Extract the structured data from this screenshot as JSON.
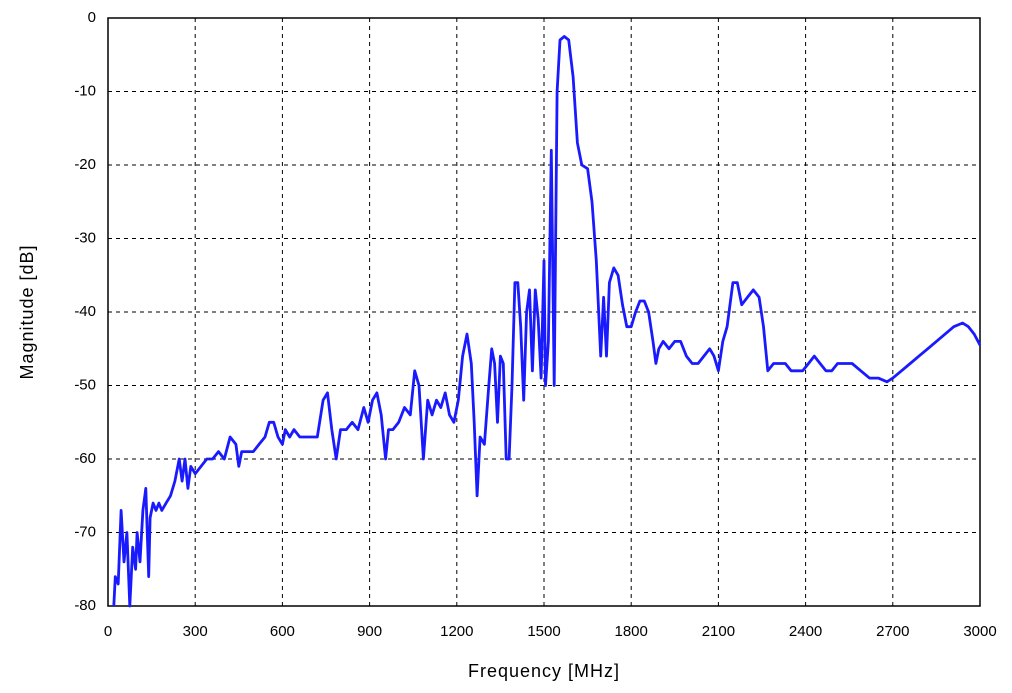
{
  "chart_data": {
    "type": "line",
    "xlabel": "Frequency [MHz]",
    "ylabel": "Magnitude [dB]",
    "x": [
      20,
      25,
      35,
      45,
      55,
      65,
      75,
      85,
      95,
      100,
      110,
      120,
      130,
      140,
      145,
      155,
      165,
      175,
      185,
      200,
      215,
      230,
      245,
      255,
      265,
      275,
      285,
      300,
      320,
      340,
      360,
      380,
      400,
      420,
      440,
      450,
      460,
      480,
      500,
      520,
      540,
      555,
      570,
      585,
      600,
      610,
      625,
      640,
      660,
      680,
      700,
      720,
      740,
      755,
      770,
      785,
      800,
      820,
      840,
      860,
      880,
      895,
      910,
      925,
      940,
      955,
      965,
      980,
      1000,
      1020,
      1040,
      1055,
      1070,
      1085,
      1100,
      1115,
      1130,
      1145,
      1160,
      1175,
      1190,
      1205,
      1220,
      1235,
      1250,
      1260,
      1270,
      1280,
      1295,
      1310,
      1320,
      1330,
      1340,
      1350,
      1360,
      1370,
      1380,
      1390,
      1400,
      1410,
      1420,
      1430,
      1440,
      1450,
      1460,
      1470,
      1480,
      1490,
      1500,
      1505,
      1515,
      1525,
      1535,
      1545,
      1555,
      1570,
      1585,
      1600,
      1615,
      1630,
      1650,
      1665,
      1680,
      1695,
      1705,
      1715,
      1725,
      1740,
      1755,
      1770,
      1785,
      1800,
      1815,
      1830,
      1845,
      1860,
      1875,
      1885,
      1895,
      1910,
      1930,
      1950,
      1970,
      1990,
      2010,
      2030,
      2050,
      2070,
      2085,
      2100,
      2115,
      2130,
      2150,
      2165,
      2180,
      2200,
      2220,
      2240,
      2255,
      2270,
      2290,
      2310,
      2330,
      2350,
      2370,
      2390,
      2410,
      2430,
      2450,
      2470,
      2490,
      2510,
      2530,
      2560,
      2590,
      2620,
      2650,
      2680,
      2700,
      2730,
      2760,
      2790,
      2820,
      2850,
      2880,
      2910,
      2940,
      2960,
      2980,
      3000
    ],
    "values": [
      -80,
      -76,
      -77,
      -67,
      -74,
      -70,
      -80,
      -72,
      -75,
      -70,
      -74,
      -67,
      -64,
      -76,
      -68,
      -66,
      -67,
      -66,
      -67,
      -66,
      -65,
      -63,
      -60,
      -63,
      -60,
      -64,
      -61,
      -62,
      -61,
      -60,
      -60,
      -59,
      -60,
      -57,
      -58,
      -61,
      -59,
      -59,
      -59,
      -58,
      -57,
      -55,
      -55,
      -57,
      -58,
      -56,
      -57,
      -56,
      -57,
      -57,
      -57,
      -57,
      -52,
      -51,
      -56,
      -60,
      -56,
      -56,
      -55,
      -56,
      -53,
      -55,
      -52,
      -51,
      -54,
      -60,
      -56,
      -56,
      -55,
      -53,
      -54,
      -48,
      -50,
      -60,
      -52,
      -54,
      -52,
      -53,
      -51,
      -54,
      -55,
      -52,
      -46,
      -43,
      -47,
      -55,
      -65,
      -57,
      -58,
      -50,
      -45,
      -47,
      -55,
      -46,
      -47,
      -60,
      -60,
      -50,
      -36,
      -36,
      -42,
      -52,
      -40,
      -37,
      -48,
      -37,
      -41,
      -49,
      -33,
      -50,
      -44,
      -18,
      -50,
      -10,
      -3,
      -2.5,
      -3,
      -8,
      -17,
      -20,
      -20.5,
      -25,
      -33,
      -46,
      -38,
      -46,
      -36,
      -34,
      -35,
      -39,
      -42,
      -42,
      -40,
      -38.5,
      -38.5,
      -40,
      -44,
      -47,
      -45,
      -44,
      -45,
      -44,
      -44,
      -46,
      -47,
      -47,
      -46,
      -45,
      -46,
      -48,
      -44,
      -42,
      -36,
      -36,
      -39,
      -38,
      -37,
      -38,
      -42,
      -48,
      -47,
      -47,
      -47,
      -48,
      -48,
      -48,
      -47,
      -46,
      -47,
      -48,
      -48,
      -47,
      -47,
      -47,
      -48,
      -49,
      -49,
      -49.5,
      -49,
      -48,
      -47,
      -46,
      -45,
      -44,
      -43,
      -42,
      -41.5,
      -42,
      -43,
      -44.5
    ],
    "color": "#1a1aff",
    "xlim": [
      0,
      3000
    ],
    "xticks": [
      0,
      300,
      600,
      900,
      1200,
      1500,
      1800,
      2100,
      2400,
      2700,
      3000
    ],
    "ylim": [
      -80,
      0
    ],
    "yticks": [
      0,
      -10,
      -20,
      -30,
      -40,
      -50,
      -60,
      -70,
      -80
    ],
    "grid": true
  }
}
